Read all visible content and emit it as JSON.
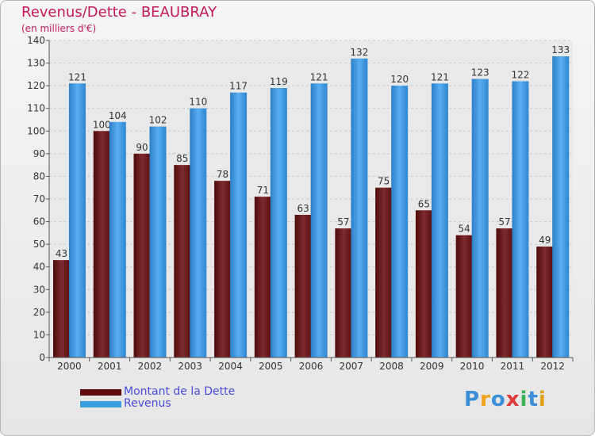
{
  "header": {
    "title": "Revenus/Dette - BEAUBRAY",
    "subtitle": "(en milliers d'€)"
  },
  "legend": {
    "items": [
      {
        "label": "Montant de la Dette",
        "color": "#7a1c1c"
      },
      {
        "label": "Revenus",
        "color": "#3d9be0"
      }
    ]
  },
  "logo": {
    "text": "Proxiti",
    "letter_colors": [
      "#3b8fd8",
      "#f0a21b",
      "#3b8fd8",
      "#e03b3b",
      "#3bb25a",
      "#3b8fd8",
      "#e0a21b"
    ]
  },
  "chart_data": {
    "type": "bar",
    "title": "Revenus/Dette - BEAUBRAY",
    "subtitle": "(en milliers d'€)",
    "categories": [
      "2000",
      "2001",
      "2002",
      "2003",
      "2004",
      "2005",
      "2006",
      "2007",
      "2008",
      "2009",
      "2010",
      "2011",
      "2012"
    ],
    "series": [
      {
        "name": "Montant de la Dette",
        "color": "#7a1c1c",
        "values": [
          43,
          100,
          90,
          85,
          78,
          71,
          63,
          57,
          75,
          65,
          54,
          57,
          49
        ]
      },
      {
        "name": "Revenus",
        "color": "#3d9be0",
        "values": [
          121,
          104,
          102,
          110,
          117,
          119,
          121,
          132,
          120,
          121,
          123,
          122,
          133
        ]
      }
    ],
    "ylim": [
      0,
      140
    ],
    "yticks": [
      0,
      10,
      20,
      30,
      40,
      50,
      60,
      70,
      80,
      90,
      100,
      110,
      120,
      130,
      140
    ],
    "grid": true,
    "legend_position": "bottom-left"
  }
}
